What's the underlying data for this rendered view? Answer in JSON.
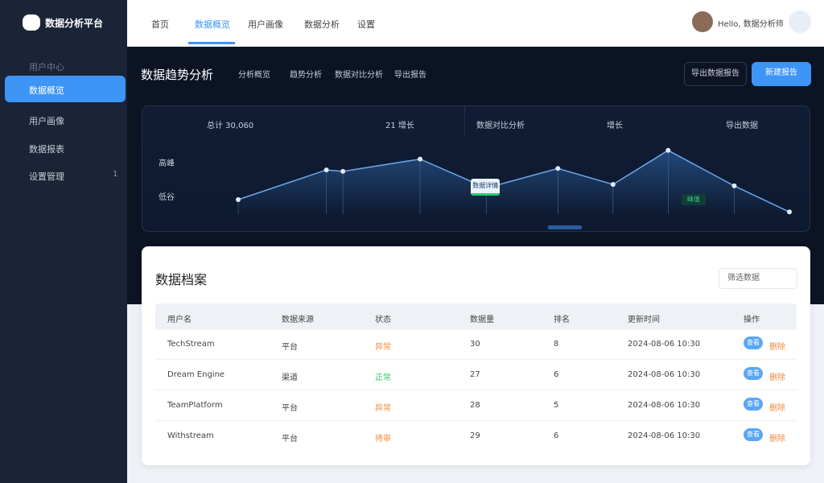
{
  "sidebar": {
    "logo": "数据分析平台",
    "menu": [
      {
        "label": "用户中心"
      },
      {
        "label": "数据概览"
      },
      {
        "label": "用户画像"
      },
      {
        "label": "数据报表"
      },
      {
        "label": "设置管理",
        "badge": "1"
      }
    ]
  },
  "header": {
    "nav": [
      "首页",
      "数据概览",
      "用户画像",
      "数据分析",
      "设置"
    ],
    "user": "Hello, 数据分析师"
  },
  "hero": {
    "title": "数据趋势分析",
    "tabs": [
      "分析概览",
      "趋势分析",
      "数据对比分析",
      "导出报告"
    ],
    "buttons": [
      "导出数据报告",
      "新建报告"
    ]
  },
  "trend": {
    "stats": [
      "总计 30,060",
      "21 增长",
      "数据对比分析",
      "增长",
      "导出数据"
    ],
    "y_labels": [
      "高峰",
      "低谷"
    ],
    "x": [
      0,
      16,
      19,
      33,
      45,
      58,
      68,
      78,
      90,
      100
    ],
    "values": [
      20,
      61,
      59,
      76,
      36,
      63,
      41,
      88,
      39,
      3
    ],
    "tooltip": "数据详情",
    "peak_label": "峰值"
  },
  "archive": {
    "title": "数据档案",
    "filter": "筛选数据",
    "columns": [
      "用户名",
      "数据来源",
      "状态",
      "数据量",
      "排名",
      "更新时间",
      "操作"
    ],
    "rows": [
      [
        "TechStream",
        "平台",
        "异常",
        "30",
        "8",
        "2024-08-06 10:30"
      ],
      [
        "Dream Engine",
        "渠道",
        "正常",
        "27",
        "6",
        "2024-08-06 10:30"
      ],
      [
        "TeamPlatform",
        "平台",
        "异常",
        "28",
        "5",
        "2024-08-06 10:30"
      ],
      [
        "Withstream",
        "平台",
        "待审",
        "29",
        "6",
        "2024-08-06 10:30"
      ]
    ],
    "actions": [
      "查看",
      "删除"
    ]
  }
}
